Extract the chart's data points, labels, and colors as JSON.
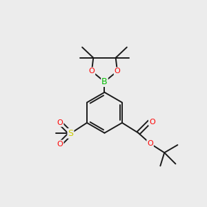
{
  "bg_color": "#ececec",
  "atom_colors": {
    "O": "#ff0000",
    "B": "#00bb00",
    "S": "#cccc00"
  },
  "bond_color": "#1a1a1a",
  "bond_width": 1.4,
  "fig_size": [
    3.0,
    3.0
  ],
  "dpi": 100
}
